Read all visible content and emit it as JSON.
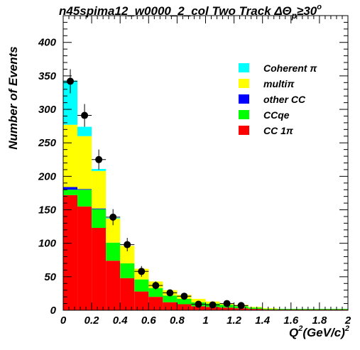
{
  "chart_data": {
    "type": "bar",
    "title_prefix": "n45spima12_w0000_2_col Two Track ",
    "title_symbol": "ΔΘ",
    "title_subscript": "p",
    "title_suffix": "≥30",
    "title_superscript": "o",
    "xlabel_main": "Q",
    "xlabel_sup": "2",
    "xlabel_rest": "(GeV/c)",
    "xlabel_sup2": "2",
    "ylabel": "Number of Events",
    "xlim": [
      0,
      2
    ],
    "ylim": [
      0,
      440
    ],
    "x_ticks": [
      0,
      0.2,
      0.4,
      0.6,
      0.8,
      1,
      1.2,
      1.4,
      1.6,
      1.8,
      2
    ],
    "x_tick_labels": [
      "0",
      "0.2",
      "0.4",
      "0.6",
      "0.8",
      "1",
      "1.2",
      "1.4",
      "1.6",
      "1.8",
      "2"
    ],
    "y_ticks": [
      0,
      50,
      100,
      150,
      200,
      250,
      300,
      350,
      400
    ],
    "y_tick_labels": [
      "0",
      "50",
      "100",
      "150",
      "200",
      "250",
      "300",
      "350",
      "400"
    ],
    "bin_edges": [
      0,
      0.1,
      0.2,
      0.3,
      0.4,
      0.5,
      0.6,
      0.7,
      0.8,
      0.9,
      1.0,
      1.1,
      1.2,
      1.3,
      1.4,
      1.5,
      1.6,
      1.7,
      1.8,
      1.9,
      2.0
    ],
    "stack_order_bottom_to_top": [
      "CC 1π",
      "CCqe",
      "other CC",
      "multiπ",
      "Coherent π"
    ],
    "series": [
      {
        "name": "CC 1π",
        "color": "#ff0000",
        "values": [
          172,
          155,
          123,
          74,
          48,
          28,
          20,
          12,
          9,
          6,
          5,
          4,
          3,
          2,
          1,
          1,
          1,
          1,
          1,
          1
        ]
      },
      {
        "name": "CCqe",
        "color": "#00ff00",
        "values": [
          8,
          25,
          28,
          27,
          22,
          18,
          13,
          10,
          8,
          6,
          5,
          4,
          3,
          2,
          1,
          1,
          1,
          1,
          1,
          1
        ]
      },
      {
        "name": "other CC",
        "color": "#0000ff",
        "values": [
          4,
          1,
          1,
          0,
          0,
          0,
          0,
          0,
          0,
          0,
          0,
          0,
          0,
          0,
          0,
          0,
          0,
          0,
          0,
          0
        ]
      },
      {
        "name": "multiπ",
        "color": "#ffff00",
        "values": [
          93,
          79,
          56,
          36,
          26,
          16,
          10,
          8,
          6,
          5,
          3,
          2,
          2,
          1,
          1,
          0,
          0,
          0,
          0,
          0
        ]
      },
      {
        "name": "Coherent π",
        "color": "#00ffff",
        "values": [
          66,
          14,
          3,
          1,
          0,
          0,
          0,
          0,
          0,
          0,
          0,
          0,
          0,
          0,
          0,
          0,
          0,
          0,
          0,
          0
        ]
      }
    ],
    "data_points": {
      "x": [
        0.05,
        0.15,
        0.25,
        0.35,
        0.45,
        0.55,
        0.65,
        0.75,
        0.85,
        0.95,
        1.05,
        1.15,
        1.25
      ],
      "y": [
        342,
        291,
        225,
        139,
        98,
        58,
        37,
        26,
        21,
        9,
        8,
        10,
        7
      ],
      "yerr": [
        18,
        17,
        15,
        12,
        10,
        8,
        6,
        5,
        5,
        3,
        3,
        3,
        3
      ]
    },
    "legend": {
      "position": "top-right",
      "entries": [
        {
          "label": "Coherent π",
          "color": "#00ffff"
        },
        {
          "label": "multiπ",
          "color": "#ffff00"
        },
        {
          "label": "other CC",
          "color": "#0000ff"
        },
        {
          "label": "CCqe",
          "color": "#00ff00"
        },
        {
          "label": "CC 1π",
          "color": "#ff0000"
        }
      ]
    },
    "grid": false
  }
}
